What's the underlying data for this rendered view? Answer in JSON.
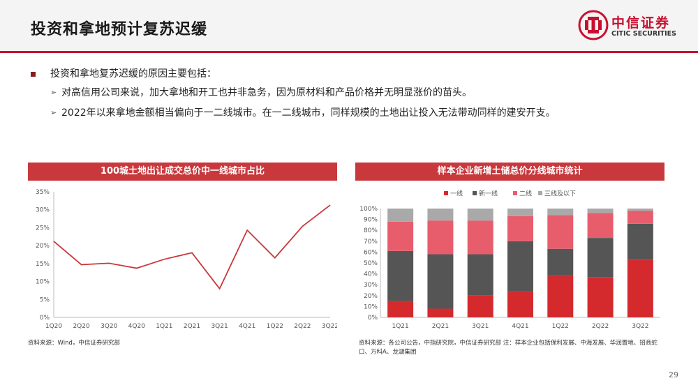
{
  "header": {
    "title": "投资和拿地预计复苏迟缓"
  },
  "logo": {
    "cn": "中信证券",
    "en": "CITIC SECURITIES"
  },
  "bullets": {
    "main": "投资和拿地复苏迟缓的原因主要包括：",
    "sub": [
      "对高信用公司来说，加大拿地和开工也并非急务，因为原材料和产品价格并无明显涨价的苗头。",
      "2022年以来拿地金额相当偏向于一二线城市。在一二线城市，同样规模的土地出让投入无法带动同样的建安开支。"
    ]
  },
  "colors": {
    "accent": "#c8102e",
    "line": "#c8383c",
    "tier1": "#d42a2e",
    "newtier1": "#555555",
    "tier2": "#e85d6c",
    "tier3": "#a9a9a9"
  },
  "chart_data": [
    {
      "type": "line",
      "title": "100城土地出让成交总价中一线城市占比",
      "categories": [
        "1Q20",
        "2Q20",
        "3Q20",
        "4Q20",
        "1Q21",
        "2Q21",
        "3Q21",
        "4Q21",
        "1Q22",
        "2Q22",
        "3Q22"
      ],
      "values": [
        21.2,
        14.7,
        15.1,
        13.7,
        16.2,
        18.0,
        8.0,
        24.3,
        16.6,
        25.4,
        31.3
      ],
      "yticks": [
        "0%",
        "5%",
        "10%",
        "15%",
        "20%",
        "25%",
        "30%",
        "35%"
      ],
      "ylim": [
        0,
        35
      ],
      "source": "资料来源：Wind，中信证券研究部"
    },
    {
      "type": "bar",
      "stacked": true,
      "title": "样本企业新增土储总价分线城市统计",
      "categories": [
        "1Q21",
        "2Q21",
        "3Q21",
        "4Q21",
        "1Q22",
        "2Q22",
        "3Q22"
      ],
      "series": [
        {
          "name": "一线",
          "values": [
            15,
            8,
            20,
            24,
            38,
            37,
            53
          ]
        },
        {
          "name": "新一线",
          "values": [
            46,
            50,
            38,
            46,
            25,
            36,
            33
          ]
        },
        {
          "name": "二线",
          "values": [
            27,
            31,
            31,
            23,
            31,
            23,
            12
          ]
        },
        {
          "name": "三线及以下",
          "values": [
            12,
            11,
            11,
            7,
            6,
            4,
            2
          ]
        }
      ],
      "yticks": [
        "0%",
        "10%",
        "20%",
        "30%",
        "40%",
        "50%",
        "60%",
        "70%",
        "80%",
        "90%",
        "100%"
      ],
      "ylim": [
        0,
        100
      ],
      "source": "资料来源：各公司公告，中指研究院，中信证券研究部 注：样本企业包括保利发展、中海发展、华润置地、招商蛇口、万科A、龙湖集团"
    }
  ],
  "page_number": "29"
}
